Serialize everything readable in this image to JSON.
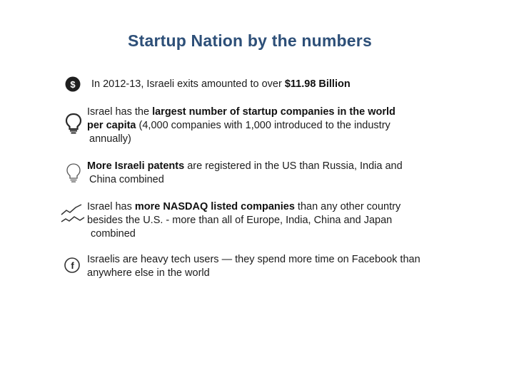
{
  "slide": {
    "title": "Startup Nation by the numbers",
    "items": [
      {
        "icon": "dollar-icon",
        "lines": [
          [
            {
              "t": "In 2012-13, Israeli exits amounted to over "
            },
            {
              "t": "$11.98 Billion",
              "b": true
            }
          ]
        ]
      },
      {
        "icon": "lightbulb-icon",
        "lines": [
          [
            {
              "t": "Israel has the "
            },
            {
              "t": "largest number of startup companies in the world",
              "b": true
            }
          ],
          [
            {
              "t": "per capita",
              "b": true
            },
            {
              "t": " (4,000 companies with 1,000 introduced to the industry"
            }
          ],
          [
            {
              "t": "annually)"
            }
          ]
        ]
      },
      {
        "icon": "lightbulb-outline-icon",
        "lines": [
          [
            {
              "t": "More Israeli patents",
              "b": true
            },
            {
              "t": " are registered in the US than Russia, India and"
            }
          ],
          [
            {
              "t": "China combined"
            }
          ]
        ]
      },
      {
        "icon": "trend-line-icon",
        "lines": [
          [
            {
              "t": "Israel has "
            },
            {
              "t": "more NASDAQ listed companies",
              "b": true
            },
            {
              "t": " than any other country"
            }
          ],
          [
            {
              "t": "besides the U.S. - more than all of Europe, India, China and Japan"
            }
          ],
          [
            {
              "t": "combined"
            }
          ]
        ]
      },
      {
        "icon": "facebook-icon",
        "lines": [
          [
            {
              "t": "Israelis are heavy tech users — they spend more time on Facebook than"
            }
          ],
          [
            {
              "t": "anywhere else in the world"
            }
          ]
        ]
      }
    ]
  },
  "colors": {
    "title": "#2d4f78",
    "text": "#1c1c1c",
    "icon_dark": "#1f1f1f",
    "icon_line": "#333333"
  }
}
